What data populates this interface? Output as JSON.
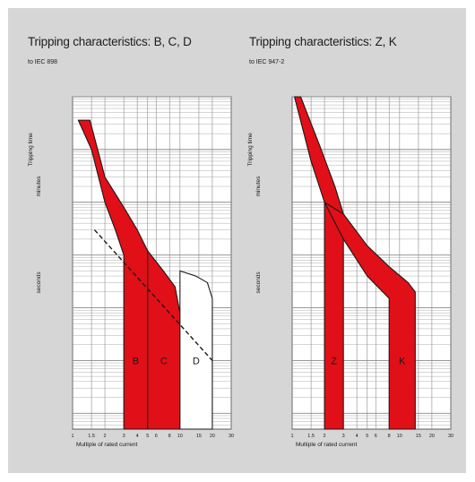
{
  "colors": {
    "background": "#d6d6d6",
    "plot_background": "#ffffff",
    "band_fill": "#e10f17",
    "band_fill_d": "#ffffff",
    "line": "#1a1a1a",
    "grid": "#8a8a8a"
  },
  "chart_data": [
    {
      "type": "area",
      "title": "Tripping characteristics: B, C, D",
      "subtitle": "to IEC 898",
      "xlabel": "Multiple of rated current",
      "ylabel": "Tripping time",
      "time_ranges": [
        "seconds",
        "minutes"
      ],
      "x_scale": "log",
      "y_scale": "log",
      "xlim": [
        1,
        30
      ],
      "ylim": [
        0.005,
        10000
      ],
      "x_ticks": [
        "1",
        "1.5",
        "2",
        "3",
        "4",
        "5",
        "6",
        "8",
        "10",
        "15",
        "20",
        "30"
      ],
      "grid": true,
      "series": [
        {
          "name": "B",
          "min_curve": [
            [
              1.13,
              3600
            ],
            [
              1.5,
              1000
            ],
            [
              2.0,
              100
            ],
            [
              2.5,
              30
            ],
            [
              3.0,
              10
            ],
            [
              3.0,
              0.005
            ]
          ],
          "max_curve": [
            [
              1.45,
              3600
            ],
            [
              2.0,
              300
            ],
            [
              3.0,
              80
            ],
            [
              4.0,
              30
            ],
            [
              5.0,
              12
            ],
            [
              5.0,
              0.005
            ]
          ]
        },
        {
          "name": "C",
          "min_curve": [
            [
              5.0,
              12
            ],
            [
              5.0,
              0.005
            ]
          ],
          "max_curve": [
            [
              5.0,
              12
            ],
            [
              7.0,
              5
            ],
            [
              9.0,
              2.5
            ],
            [
              10.0,
              0.8
            ],
            [
              10.0,
              0.005
            ]
          ]
        },
        {
          "name": "D",
          "min_curve": [
            [
              10.0,
              0.8
            ],
            [
              10.0,
              0.005
            ]
          ],
          "max_curve": [
            [
              10.0,
              5
            ],
            [
              14.0,
              4
            ],
            [
              18.0,
              3
            ],
            [
              20.0,
              1.5
            ],
            [
              20.0,
              0.005
            ]
          ]
        }
      ]
    },
    {
      "type": "area",
      "title": "Tripping characteristics: Z, K",
      "subtitle": "to IEC 947-2",
      "xlabel": "Multiple of rated current",
      "ylabel": "Tripping time",
      "time_ranges": [
        "seconds",
        "minutes"
      ],
      "x_scale": "log",
      "y_scale": "log",
      "xlim": [
        1,
        30
      ],
      "ylim": [
        0.005,
        10000
      ],
      "x_ticks": [
        "1",
        "1.5",
        "2",
        "3",
        "4",
        "5",
        "6",
        "8",
        "10",
        "15",
        "20",
        "30"
      ],
      "grid": true,
      "series": [
        {
          "name": "Z",
          "min_curve": [
            [
              1.05,
              10000
            ],
            [
              1.5,
              600
            ],
            [
              2.0,
              100
            ],
            [
              2.0,
              0.005
            ]
          ],
          "max_curve": [
            [
              1.2,
              10000
            ],
            [
              1.8,
              1200
            ],
            [
              2.5,
              200
            ],
            [
              3.0,
              60
            ],
            [
              3.0,
              0.005
            ]
          ]
        },
        {
          "name": "K",
          "min_curve": [
            [
              2.0,
              100
            ],
            [
              3.0,
              20
            ],
            [
              5.0,
              4
            ],
            [
              8.0,
              1.5
            ],
            [
              8.0,
              0.005
            ]
          ],
          "max_curve": [
            [
              3.0,
              60
            ],
            [
              5.0,
              15
            ],
            [
              8.0,
              6
            ],
            [
              12.0,
              3
            ],
            [
              14.0,
              2
            ],
            [
              14.0,
              0.005
            ]
          ]
        }
      ]
    }
  ]
}
